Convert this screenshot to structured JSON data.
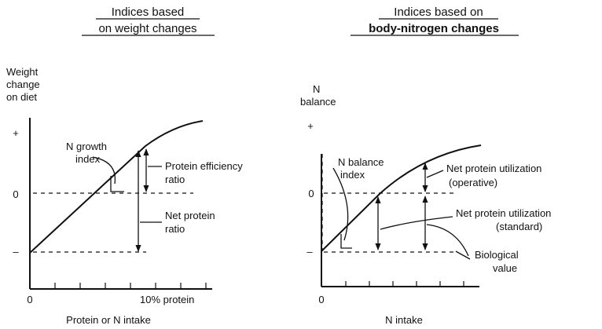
{
  "left_panel": {
    "title_line1": "Indices based",
    "title_line2": "on weight changes",
    "y_label_line1": "Weight",
    "y_label_line2": "change",
    "y_label_line3": "on diet",
    "tick_plus": "+",
    "tick_zero": "0",
    "tick_minus": "–",
    "x_origin": "0",
    "x_marker": "10% protein",
    "x_label": "Protein or N intake",
    "annotations": {
      "n_growth_line1": "N growth",
      "n_growth_line2": "index",
      "per_line1": "Protein efficiency",
      "per_line2": "ratio",
      "npr_line1": "Net protein",
      "npr_line2": "ratio"
    }
  },
  "right_panel": {
    "title_line1": "Indices based on",
    "title_line2": "body-nitrogen changes",
    "y_label_line1": "N",
    "y_label_line2": "balance",
    "tick_plus": "+",
    "tick_zero": "0",
    "tick_minus": "–",
    "x_origin": "0",
    "x_label": "N intake",
    "annotations": {
      "nbi_line1": "N balance",
      "nbi_line2": "index",
      "npu_op_line1": "Net protein utilization",
      "npu_op_line2": "(operative)",
      "npu_std_line1": "Net protein utilization",
      "npu_std_line2": "(standard)",
      "bv_line1": "Biological",
      "bv_line2": "value"
    }
  }
}
